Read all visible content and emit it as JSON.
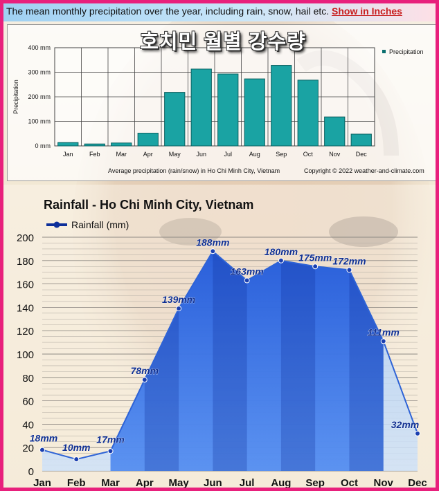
{
  "top_note": "The mean monthly precipitation over the year, including rain, snow, hail etc.",
  "top_link": "Show in Inches",
  "korean_title": "호치민 월별 강수량",
  "colors": {
    "frame": "#e8207c",
    "bar": "#1aa3a3",
    "area": "#1f5fe0",
    "line": "#0b37a6"
  },
  "chart_data": [
    {
      "type": "bar",
      "categories": [
        "Jan",
        "Feb",
        "Mar",
        "Apr",
        "May",
        "Jun",
        "Jul",
        "Aug",
        "Sep",
        "Oct",
        "Nov",
        "Dec"
      ],
      "values": [
        14,
        8,
        12,
        52,
        218,
        313,
        293,
        273,
        328,
        268,
        118,
        48
      ],
      "ylabel": "Precipitation",
      "ylim": [
        0,
        400
      ],
      "yticks": [
        "0 mm",
        "100 mm",
        "200 mm",
        "300 mm",
        "400 mm"
      ],
      "legend": "Precipitation",
      "caption": "Average precipitation (rain/snow) in Ho Chi Minh City, Vietnam",
      "copyright": "Copyright © 2022  weather-and-climate.com"
    },
    {
      "type": "area",
      "title": "Rainfall - Ho Chi Minh City, Vietnam",
      "legend": "Rainfall (mm)",
      "categories": [
        "Jan",
        "Feb",
        "Mar",
        "Apr",
        "May",
        "Jun",
        "Jul",
        "Aug",
        "Sep",
        "Oct",
        "Nov",
        "Dec"
      ],
      "values": [
        18,
        10,
        17,
        78,
        139,
        188,
        163,
        180,
        175,
        172,
        111,
        32
      ],
      "labels": [
        "18mm",
        "10mm",
        "17mm",
        "78mm",
        "139mm",
        "188mm",
        "163mm",
        "180mm",
        "175mm",
        "172mm",
        "111mm",
        "32mm"
      ],
      "ylim": [
        0,
        200
      ],
      "yticks": [
        "0",
        "20",
        "40",
        "60",
        "80",
        "100",
        "120",
        "140",
        "160",
        "180",
        "200"
      ]
    }
  ]
}
